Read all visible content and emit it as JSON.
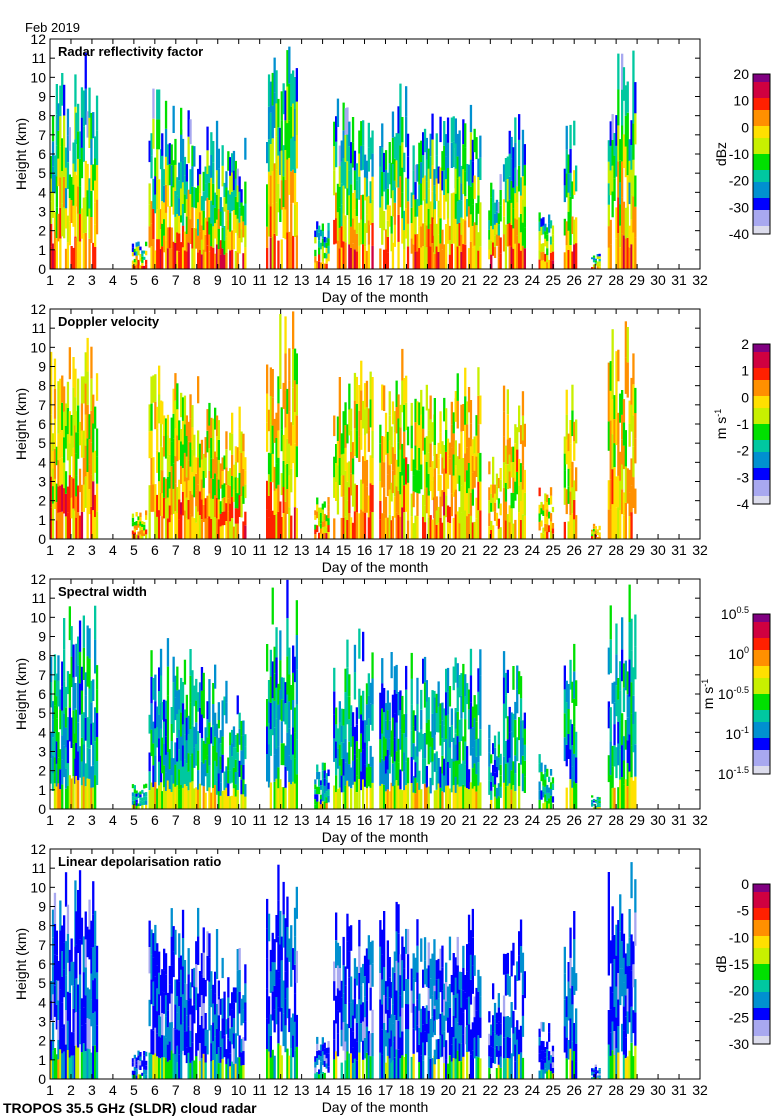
{
  "figure": {
    "date_label": "Feb 2019",
    "footer": "TROPOS 35.5 GHz (SLDR) cloud radar"
  },
  "chart_data": [
    {
      "type": "heatmap",
      "title": "Radar reflectivity factor",
      "xlabel": "Day of the month",
      "ylabel": "Height (km)",
      "xlim": [
        1,
        32
      ],
      "ylim": [
        0,
        12
      ],
      "xticks": [
        1,
        2,
        3,
        4,
        5,
        6,
        7,
        8,
        9,
        10,
        11,
        12,
        13,
        14,
        15,
        16,
        17,
        18,
        19,
        20,
        21,
        22,
        23,
        24,
        25,
        26,
        27,
        28,
        29,
        30,
        31,
        32
      ],
      "yticks": [
        0,
        1,
        2,
        3,
        4,
        5,
        6,
        7,
        8,
        9,
        10,
        11,
        12
      ],
      "colorbar": {
        "label": "dBz",
        "range": [
          -40,
          20
        ],
        "ticks": [
          "20",
          "10",
          "0",
          "-10",
          "-20",
          "-30",
          "-40"
        ]
      }
    },
    {
      "type": "heatmap",
      "title": "Doppler velocity",
      "xlabel": "Day of the month",
      "ylabel": "Height (km)",
      "xlim": [
        1,
        32
      ],
      "ylim": [
        0,
        12
      ],
      "xticks": [
        1,
        2,
        3,
        4,
        5,
        6,
        7,
        8,
        9,
        10,
        11,
        12,
        13,
        14,
        15,
        16,
        17,
        18,
        19,
        20,
        21,
        22,
        23,
        24,
        25,
        26,
        27,
        28,
        29,
        30,
        31,
        32
      ],
      "yticks": [
        0,
        1,
        2,
        3,
        4,
        5,
        6,
        7,
        8,
        9,
        10,
        11,
        12
      ],
      "colorbar": {
        "label": "m s",
        "label_sup": "-1",
        "range": [
          -4,
          2
        ],
        "ticks": [
          "2",
          "1",
          "0",
          "-1",
          "-2",
          "-3",
          "-4"
        ]
      }
    },
    {
      "type": "heatmap",
      "title": "Spectral width",
      "xlabel": "Day of the month",
      "ylabel": "Height (km)",
      "xlim": [
        1,
        32
      ],
      "ylim": [
        0,
        12
      ],
      "xticks": [
        1,
        2,
        3,
        4,
        5,
        6,
        7,
        8,
        9,
        10,
        11,
        12,
        13,
        14,
        15,
        16,
        17,
        18,
        19,
        20,
        21,
        22,
        23,
        24,
        25,
        26,
        27,
        28,
        29,
        30,
        31,
        32
      ],
      "yticks": [
        0,
        1,
        2,
        3,
        4,
        5,
        6,
        7,
        8,
        9,
        10,
        11,
        12
      ],
      "colorbar": {
        "label": "m s",
        "label_sup": "-1",
        "scale": "log",
        "range": [
          -1.5,
          0.5
        ],
        "ticks": [
          {
            "base": "10",
            "exp": "0.5"
          },
          {
            "base": "10",
            "exp": "0"
          },
          {
            "base": "10",
            "exp": "-0.5"
          },
          {
            "base": "10",
            "exp": "-1"
          },
          {
            "base": "10",
            "exp": "-1.5"
          }
        ]
      }
    },
    {
      "type": "heatmap",
      "title": "Linear depolarisation ratio",
      "xlabel": "Day of the month",
      "ylabel": "Height (km)",
      "xlim": [
        1,
        32
      ],
      "ylim": [
        0,
        12
      ],
      "xticks": [
        1,
        2,
        3,
        4,
        5,
        6,
        7,
        8,
        9,
        10,
        11,
        12,
        13,
        14,
        15,
        16,
        17,
        18,
        19,
        20,
        21,
        22,
        23,
        24,
        25,
        26,
        27,
        28,
        29,
        30,
        31,
        32
      ],
      "yticks": [
        0,
        1,
        2,
        3,
        4,
        5,
        6,
        7,
        8,
        9,
        10,
        11,
        12
      ],
      "colorbar": {
        "label": "dB",
        "range": [
          -30,
          0
        ],
        "ticks": [
          "0",
          "-5",
          "-10",
          "-15",
          "-20",
          "-25",
          "-30"
        ]
      }
    }
  ],
  "echo_features": [
    {
      "start": 1.0,
      "end": 1.35,
      "top_km": 10
    },
    {
      "start": 1.35,
      "end": 2.2,
      "top_km": 11
    },
    {
      "start": 2.2,
      "end": 3.2,
      "top_km": 11.5
    },
    {
      "start": 4.9,
      "end": 5.6,
      "top_km": 1.5
    },
    {
      "start": 5.7,
      "end": 6.3,
      "top_km": 9.5
    },
    {
      "start": 6.3,
      "end": 7.2,
      "top_km": 9
    },
    {
      "start": 7.2,
      "end": 8.1,
      "top_km": 9
    },
    {
      "start": 8.1,
      "end": 9.0,
      "top_km": 8
    },
    {
      "start": 9.0,
      "end": 10.3,
      "top_km": 7
    },
    {
      "start": 11.3,
      "end": 12.0,
      "top_km": 11.8
    },
    {
      "start": 12.0,
      "end": 12.8,
      "top_km": 12
    },
    {
      "start": 13.6,
      "end": 14.3,
      "top_km": 2.5
    },
    {
      "start": 14.5,
      "end": 15.6,
      "top_km": 9
    },
    {
      "start": 15.7,
      "end": 16.4,
      "top_km": 10
    },
    {
      "start": 16.7,
      "end": 17.3,
      "top_km": 9
    },
    {
      "start": 17.3,
      "end": 18.1,
      "top_km": 10.5
    },
    {
      "start": 18.2,
      "end": 19.3,
      "top_km": 8.5
    },
    {
      "start": 19.3,
      "end": 20.3,
      "top_km": 8
    },
    {
      "start": 20.3,
      "end": 21.5,
      "top_km": 9
    },
    {
      "start": 21.9,
      "end": 22.5,
      "top_km": 5
    },
    {
      "start": 22.6,
      "end": 23.6,
      "top_km": 8.5
    },
    {
      "start": 24.3,
      "end": 25.0,
      "top_km": 3
    },
    {
      "start": 25.5,
      "end": 26.1,
      "top_km": 9.5
    },
    {
      "start": 26.8,
      "end": 27.2,
      "top_km": 0.8
    },
    {
      "start": 27.6,
      "end": 28.9,
      "top_km": 11.8
    }
  ],
  "colormap": [
    "#dcdcec",
    "#a8a8f0",
    "#0000ff",
    "#0090d0",
    "#00c8a0",
    "#00e000",
    "#c8f000",
    "#ffe000",
    "#ff9000",
    "#ff2000",
    "#d00040",
    "#800080"
  ]
}
